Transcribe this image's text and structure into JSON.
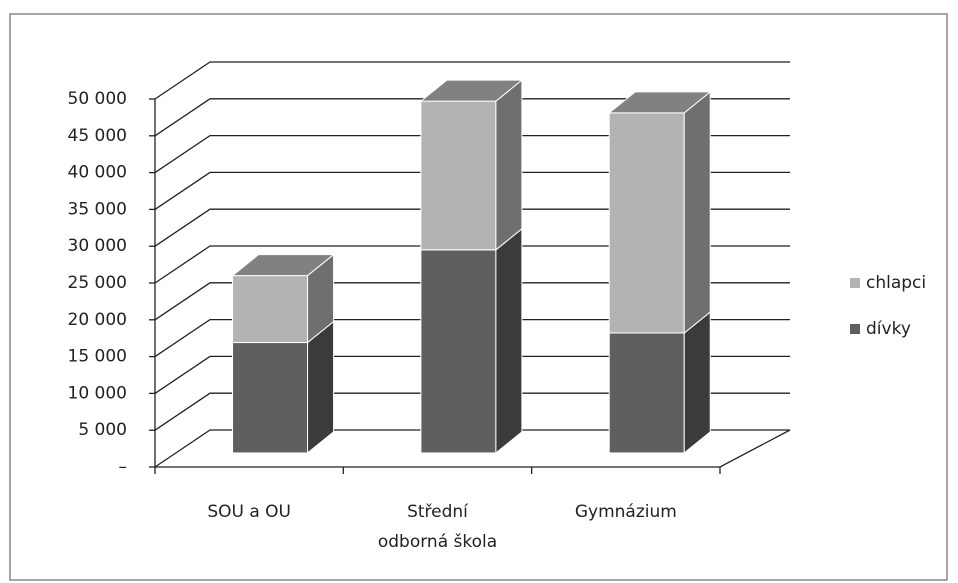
{
  "chart_data": {
    "type": "bar3d_stacked",
    "categories": [
      "SOU a OU",
      "Střední odborná škola",
      "Gymnázium"
    ],
    "series": [
      {
        "name": "dívky",
        "color": "#5f5f5f",
        "values": [
          15000,
          27600,
          16300
        ]
      },
      {
        "name": "chlapci",
        "color": "#b3b3b3",
        "values": [
          9100,
          20200,
          29900
        ]
      }
    ],
    "ylim": [
      0,
      50000
    ],
    "yticks": [
      {
        "value": 0,
        "label": "–"
      },
      {
        "value": 5000,
        "label": "5 000"
      },
      {
        "value": 10000,
        "label": "10 000"
      },
      {
        "value": 15000,
        "label": "15 000"
      },
      {
        "value": 20000,
        "label": "20 000"
      },
      {
        "value": 25000,
        "label": "25 000"
      },
      {
        "value": 30000,
        "label": "30 000"
      },
      {
        "value": 35000,
        "label": "35 000"
      },
      {
        "value": 40000,
        "label": "40 000"
      },
      {
        "value": 45000,
        "label": "45 000"
      },
      {
        "value": 50000,
        "label": "50 000"
      }
    ],
    "grid": true,
    "legend": "right"
  }
}
